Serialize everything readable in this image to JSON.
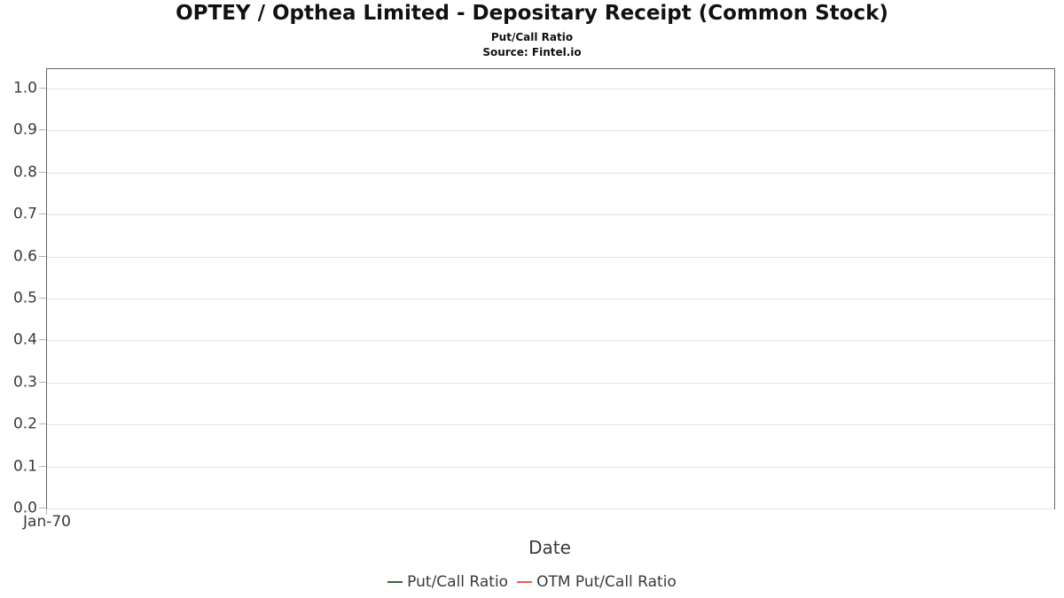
{
  "chart_data": {
    "type": "line",
    "title": "OPTEY / Opthea Limited - Depositary Receipt (Common Stock)",
    "subtitle": "Put/Call Ratio",
    "source": "Source: Fintel.io",
    "xlabel": "Date",
    "ylabel": "",
    "ylim": [
      0.0,
      1.046
    ],
    "grid": true,
    "x_tick_labels": [
      "Jan-70"
    ],
    "y_tick_labels": [
      "0.0",
      "0.1",
      "0.2",
      "0.3",
      "0.4",
      "0.5",
      "0.6",
      "0.7",
      "0.8",
      "0.9",
      "1.0"
    ],
    "legend_position": "bottom",
    "series": [
      {
        "name": "Put/Call Ratio",
        "color": "#2d6a3e",
        "x": [],
        "values": []
      },
      {
        "name": "OTM Put/Call Ratio",
        "color": "#f9564f",
        "x": [],
        "values": []
      }
    ],
    "colors": {
      "axis_border": "#666666",
      "gridline": "#e4e4e4",
      "tick": "#b3b3b3",
      "text": "#3a3a3a"
    }
  }
}
